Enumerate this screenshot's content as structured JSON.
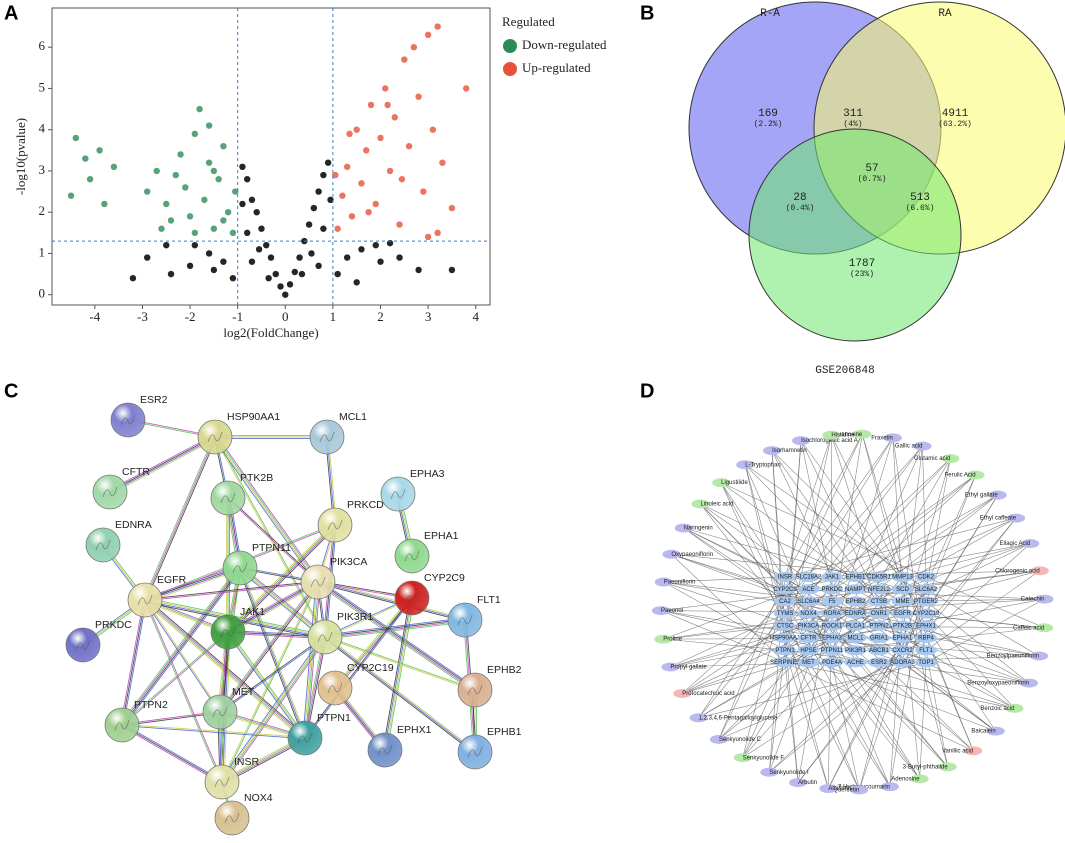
{
  "chart_data": {
    "type": "scatter",
    "panel": "A",
    "xlabel": "log2(FoldChange)",
    "ylabel": "-log10(pvalue)",
    "xlim": [
      -4.9,
      4.3
    ],
    "xticks": [
      -4,
      -3,
      -2,
      -1,
      0,
      1,
      2,
      3,
      4
    ],
    "ylim": [
      -0.25,
      6.95
    ],
    "yticks": [
      0,
      1,
      2,
      3,
      4,
      5,
      6
    ],
    "threshold_x": [
      -1,
      1
    ],
    "threshold_y": 1.3,
    "legend_title": "Regulated",
    "legend": "right",
    "series": [
      {
        "color": "#000000",
        "x": [
          0,
          -0.1,
          0.1,
          -0.2,
          0.2,
          -0.3,
          0.3,
          -0.4,
          0.4,
          -0.5,
          0.5,
          -0.6,
          0.6,
          -0.7,
          0.7,
          -0.8,
          0.8,
          -0.9,
          0.9,
          -0.55,
          0.55,
          -0.8,
          0.8,
          -0.9,
          0.95,
          -1.3,
          1.3,
          -1.6,
          1.6,
          -2.0,
          2.0,
          -2.4,
          2.4,
          -2.9,
          2.8,
          -1.9,
          1.9,
          -1.1,
          1.1,
          -0.7,
          0.7,
          -3.2,
          3.5,
          2.2,
          -2.5,
          -0.35,
          0.35,
          -1.5,
          1.5
        ],
        "values": [
          0,
          0.2,
          0.25,
          0.5,
          0.55,
          0.9,
          0.9,
          1.2,
          1.3,
          1.6,
          1.7,
          2.0,
          2.1,
          2.3,
          2.5,
          2.8,
          2.9,
          3.1,
          3.2,
          1.1,
          1.0,
          1.5,
          1.6,
          2.2,
          2.3,
          0.8,
          0.9,
          1.0,
          1.1,
          0.7,
          0.8,
          0.5,
          0.9,
          0.9,
          0.6,
          1.2,
          1.2,
          0.4,
          0.5,
          0.8,
          0.7,
          0.4,
          0.6,
          1.25,
          1.2,
          0.4,
          0.5,
          0.6,
          0.3
        ]
      },
      {
        "name": "Down-regulated",
        "color": "#2e8b57",
        "x": [
          -4.4,
          -4.2,
          -4.1,
          -3.9,
          -3.8,
          -4.5,
          -3.6,
          -2.9,
          -2.7,
          -2.5,
          -2.4,
          -2.2,
          -2.1,
          -2.0,
          -1.9,
          -1.8,
          -1.7,
          -1.6,
          -1.5,
          -1.4,
          -1.3,
          -1.2,
          -1.1,
          -1.6,
          -2.3,
          -1.9,
          -1.3,
          -2.6,
          -1.05,
          -1.5
        ],
        "values": [
          3.8,
          3.3,
          2.8,
          3.5,
          2.2,
          2.4,
          3.1,
          2.5,
          3.0,
          2.2,
          1.8,
          3.4,
          2.6,
          1.9,
          3.9,
          4.5,
          2.3,
          3.2,
          1.6,
          2.8,
          3.6,
          2.0,
          1.5,
          4.1,
          2.9,
          1.5,
          1.8,
          1.6,
          2.5,
          3.0
        ]
      },
      {
        "name": "Up-regulated",
        "color": "#e8503a",
        "x": [
          1.1,
          1.2,
          1.3,
          1.4,
          1.5,
          1.6,
          1.7,
          1.8,
          1.9,
          2.0,
          2.1,
          2.2,
          2.3,
          2.4,
          2.5,
          2.6,
          2.7,
          2.8,
          2.9,
          3.0,
          3.1,
          3.2,
          3.3,
          3.5,
          3.8,
          1.05,
          1.35,
          1.75,
          2.15,
          2.45,
          3.0,
          3.2
        ],
        "values": [
          1.6,
          2.4,
          3.1,
          1.9,
          4.0,
          2.7,
          3.5,
          4.6,
          2.2,
          3.8,
          5.0,
          3.0,
          4.3,
          1.7,
          5.7,
          3.6,
          6.0,
          4.8,
          2.5,
          6.3,
          4.0,
          6.5,
          3.2,
          2.1,
          5.0,
          2.9,
          3.9,
          2.0,
          4.6,
          2.8,
          1.4,
          1.5
        ]
      }
    ]
  },
  "venn": {
    "panel": "B",
    "sets": [
      {
        "name": "R-A",
        "color": "#5b5bf0",
        "label_color": "#6a6ae0"
      },
      {
        "name": "RA",
        "color": "#fbfb6e",
        "label_color": "#9a9a50"
      },
      {
        "name": "GSE206848",
        "color": "#6ee86e",
        "label_color": "#3aa03a"
      }
    ],
    "regions": [
      {
        "count": 169,
        "percent": "(2.2%)"
      },
      {
        "count": 311,
        "percent": "(4%)"
      },
      {
        "count": 4911,
        "percent": "(63.2%)"
      },
      {
        "count": 57,
        "percent": "(0.7%)"
      },
      {
        "count": 28,
        "percent": "(0.4%)"
      },
      {
        "count": 513,
        "percent": "(6.6%)"
      },
      {
        "count": 1787,
        "percent": "(23%)"
      }
    ]
  },
  "ppi_network": {
    "panel": "C",
    "nodes": [
      {
        "label": "ESR2",
        "color": "#8080d0"
      },
      {
        "label": "HSP90AA1",
        "color": "#d8d890"
      },
      {
        "label": "MCL1",
        "color": "#a8c8d8"
      },
      {
        "label": "CFTR",
        "color": "#a0d8a8"
      },
      {
        "label": "PTK2B",
        "color": "#a0d8a0"
      },
      {
        "label": "EPHA3",
        "color": "#a8d8e8"
      },
      {
        "label": "PRKCD",
        "color": "#e0e0a0"
      },
      {
        "label": "EDNRA",
        "color": "#90d0b0"
      },
      {
        "label": "PTPN11",
        "color": "#90d890"
      },
      {
        "label": "EPHA1",
        "color": "#90d890"
      },
      {
        "label": "EGFR",
        "color": "#e8e0a8"
      },
      {
        "label": "PIK3CA",
        "color": "#e8e0b0"
      },
      {
        "label": "CYP2C9",
        "color": "#d02020"
      },
      {
        "label": "FLT1",
        "color": "#80b8e0"
      },
      {
        "label": "PRKDC",
        "color": "#7070c8"
      },
      {
        "label": "JAK1",
        "color": "#40a040"
      },
      {
        "label": "PIK3R1",
        "color": "#d8e0a0"
      },
      {
        "label": "EPHB2",
        "color": "#d8b090"
      },
      {
        "label": "MET",
        "color": "#a0d0a0"
      },
      {
        "label": "CYP2C19",
        "color": "#e0c090"
      },
      {
        "label": "PTPN2",
        "color": "#a0d090"
      },
      {
        "label": "PTPN1",
        "color": "#40a0a0"
      },
      {
        "label": "EPHX1",
        "color": "#7090c8"
      },
      {
        "label": "EPHB1",
        "color": "#80b0e0"
      },
      {
        "label": "INSR",
        "color": "#e0e0a8"
      },
      {
        "label": "NOX4",
        "color": "#d8c090"
      }
    ]
  },
  "compound_network": {
    "panel": "D",
    "compounds": [
      {
        "label": "Guanosine",
        "color": "#b6e8a8"
      },
      {
        "label": "Fraxetin",
        "color": "#b9b9ee"
      },
      {
        "label": "Gallic acid",
        "color": "#b9b9ee"
      },
      {
        "label": "Glutamic acid",
        "color": "#b6e8a8"
      },
      {
        "label": "Ferulic Acid",
        "color": "#b6e8a8"
      },
      {
        "label": "Ethyl gallate",
        "color": "#b9b9ee"
      },
      {
        "label": "Ethyl caffeate",
        "color": "#b9b9ee"
      },
      {
        "label": "Ellagic Acid",
        "color": "#b9b9ee"
      },
      {
        "label": "Chlorogenic acid",
        "color": "#f4b6b6"
      },
      {
        "label": "Catechin",
        "color": "#b9b9ee"
      },
      {
        "label": "Caffeic acid",
        "color": "#b6e8a8"
      },
      {
        "label": "Benzoylpaeoniflorin",
        "color": "#b9b9ee"
      },
      {
        "label": "Benzoyloxypaeoniflorin",
        "color": "#b9b9ee"
      },
      {
        "label": "Benzoic acid",
        "color": "#b6e8a8"
      },
      {
        "label": "Baicalein",
        "color": "#b9b9ee"
      },
      {
        "label": "Vanillic acid",
        "color": "#f4b6b6"
      },
      {
        "label": "3-Butyl-phthalide",
        "color": "#b6e8a8"
      },
      {
        "label": "Adenosine",
        "color": "#b6e8a8"
      },
      {
        "label": "7-Hydroxycoumarin",
        "color": "#b9b9ee"
      },
      {
        "label": "Quercetin",
        "color": "#b9b9ee"
      },
      {
        "label": "Albiflorin",
        "color": "#b9b9ee"
      },
      {
        "label": "Arbutin",
        "color": "#b9b9ee"
      },
      {
        "label": "Senkyunolide I",
        "color": "#b9b9ee"
      },
      {
        "label": "Senkyunolide F",
        "color": "#b6e8a8"
      },
      {
        "label": "Senkyunolide C",
        "color": "#b9b9ee"
      },
      {
        "label": "1,2,3,4,6-Pentagalloylglucose",
        "color": "#b9b9ee"
      },
      {
        "label": "Protocatechuic acid",
        "color": "#f4b6b6"
      },
      {
        "label": "Propyl gallate",
        "color": "#b9b9ee"
      },
      {
        "label": "Proline",
        "color": "#b6e8a8"
      },
      {
        "label": "Paeonol",
        "color": "#b9b9ee"
      },
      {
        "label": "Paeoniflorin",
        "color": "#b9b9ee"
      },
      {
        "label": "Oxypaeoniflorin",
        "color": "#b9b9ee"
      },
      {
        "label": "Naringenin",
        "color": "#b9b9ee"
      },
      {
        "label": "Linoleic acid",
        "color": "#b6e8a8"
      },
      {
        "label": "Ligustilide",
        "color": "#b6e8a8"
      },
      {
        "label": "L-Tryptophan",
        "color": "#b9b9ee"
      },
      {
        "label": "Isorhamnetin",
        "color": "#b9b9ee"
      },
      {
        "label": "Isochlorogenic acid A",
        "color": "#b9b9ee"
      },
      {
        "label": "Histidine",
        "color": "#b6e8a8"
      }
    ],
    "target_color": "#a8c8f0",
    "targets": [
      [
        "INSR",
        "SLC28A2",
        "JAK1",
        "EPHB1",
        "CDK5R1",
        "MMP13",
        "CDK2"
      ],
      [
        "CYP2C9",
        "ACE",
        "PRKDC",
        "NAMPT",
        "NFE2L2",
        "SCD",
        "SLC6A2"
      ],
      [
        "CA2",
        "SLC6A4",
        "F5",
        "EPHB2",
        "CTSB",
        "MME",
        "PTGER2"
      ],
      [
        "TYMS",
        "NOX4",
        "RORA",
        "EDNRA",
        "CNR1",
        "EGFR",
        "CYP2C19"
      ],
      [
        "CTSC",
        "PIK3CA",
        "ROCK1",
        "PLCA1",
        "PTPN2",
        "PTK2B",
        "EPHX1"
      ],
      [
        "HSP90AA1",
        "CFTR",
        "EPHA3",
        "MCL1",
        "GRIA1",
        "EPHA1",
        "RBP4"
      ],
      [
        "PTPN1",
        "HPSE",
        "PTPN11",
        "PIK3R1",
        "ABCB1",
        "CXCR2",
        "FLT1"
      ],
      [
        "SERPINE1",
        "MET",
        "PDE4A",
        "ACHE",
        "ESR2",
        "ADORA3",
        "TOP1"
      ]
    ]
  }
}
